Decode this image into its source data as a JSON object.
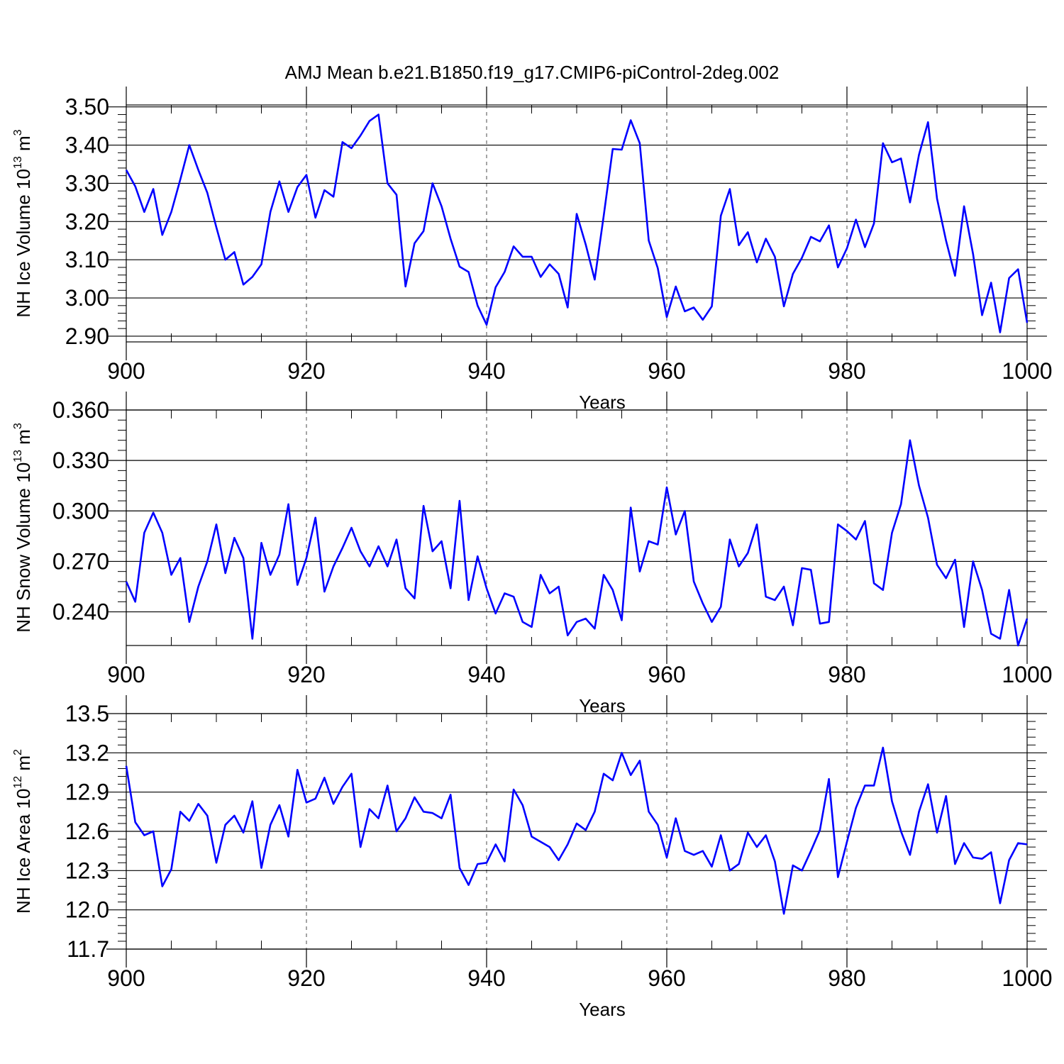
{
  "title": "AMJ Mean b.e21.B1850.f19_g17.CMIP6-piControl-2deg.002",
  "colors": {
    "series": "#0000ff",
    "axis": "#000000"
  },
  "chart_data": [
    {
      "type": "line",
      "xlabel": "Years",
      "ylabel_main": "NH Ice Volume 10",
      "ylabel_exp": "13",
      "ylabel_unit": " m",
      "ylabel_unit_exp": "3",
      "xlim": [
        900,
        1000
      ],
      "ylim": [
        2.885,
        3.505
      ],
      "xticks": [
        900,
        920,
        940,
        960,
        980,
        1000
      ],
      "yticks": [
        2.9,
        3.0,
        3.1,
        3.2,
        3.3,
        3.4,
        3.5
      ],
      "ytick_labels": [
        "2.90",
        "3.00",
        "3.10",
        "3.20",
        "3.30",
        "3.40",
        "3.50"
      ],
      "grid": "vertical-dashed",
      "x_start": 900,
      "values": [
        3.335,
        3.292,
        3.225,
        3.285,
        3.165,
        3.225,
        3.31,
        3.4,
        3.335,
        3.275,
        3.185,
        3.1,
        3.12,
        3.035,
        3.055,
        3.088,
        3.225,
        3.305,
        3.225,
        3.29,
        3.322,
        3.21,
        3.282,
        3.265,
        3.408,
        3.392,
        3.425,
        3.463,
        3.48,
        3.3,
        3.27,
        3.03,
        3.143,
        3.175,
        3.3,
        3.24,
        3.155,
        3.082,
        3.068,
        2.98,
        2.93,
        3.028,
        3.068,
        3.135,
        3.108,
        3.108,
        3.055,
        3.088,
        3.063,
        2.975,
        3.22,
        3.14,
        3.048,
        3.215,
        3.39,
        3.388,
        3.465,
        3.405,
        3.15,
        3.078,
        2.95,
        3.03,
        2.965,
        2.975,
        2.943,
        2.978,
        3.215,
        3.285,
        3.138,
        3.172,
        3.093,
        3.155,
        3.108,
        2.978,
        3.063,
        3.105,
        3.16,
        3.148,
        3.19,
        3.08,
        3.13,
        3.205,
        3.133,
        3.195,
        3.405,
        3.355,
        3.365,
        3.25,
        3.375,
        3.46,
        3.26,
        3.15,
        3.058,
        3.24,
        3.115,
        2.955,
        3.04,
        2.91,
        3.052,
        3.075,
        2.935
      ]
    },
    {
      "type": "line",
      "xlabel": "Years",
      "ylabel_main": "NH Snow Volume 10",
      "ylabel_exp": "13",
      "ylabel_unit": " m",
      "ylabel_unit_exp": "3",
      "xlim": [
        900,
        1000
      ],
      "ylim": [
        0.22,
        0.36
      ],
      "xticks": [
        900,
        920,
        940,
        960,
        980,
        1000
      ],
      "yticks": [
        0.24,
        0.27,
        0.3,
        0.33,
        0.36
      ],
      "ytick_labels": [
        "0.240",
        "0.270",
        "0.300",
        "0.330",
        "0.360"
      ],
      "grid": "vertical-dashed",
      "x_start": 900,
      "values": [
        0.258,
        0.246,
        0.287,
        0.299,
        0.287,
        0.262,
        0.272,
        0.234,
        0.255,
        0.27,
        0.292,
        0.263,
        0.284,
        0.272,
        0.224,
        0.281,
        0.262,
        0.274,
        0.304,
        0.256,
        0.272,
        0.296,
        0.252,
        0.267,
        0.278,
        0.29,
        0.276,
        0.267,
        0.279,
        0.267,
        0.283,
        0.254,
        0.248,
        0.303,
        0.276,
        0.282,
        0.254,
        0.306,
        0.247,
        0.273,
        0.254,
        0.239,
        0.251,
        0.249,
        0.234,
        0.231,
        0.262,
        0.251,
        0.255,
        0.226,
        0.234,
        0.236,
        0.23,
        0.262,
        0.253,
        0.235,
        0.302,
        0.264,
        0.282,
        0.28,
        0.314,
        0.286,
        0.3,
        0.258,
        0.245,
        0.234,
        0.243,
        0.283,
        0.267,
        0.275,
        0.292,
        0.249,
        0.247,
        0.255,
        0.232,
        0.266,
        0.265,
        0.233,
        0.234,
        0.292,
        0.288,
        0.283,
        0.294,
        0.257,
        0.253,
        0.287,
        0.304,
        0.342,
        0.315,
        0.296,
        0.268,
        0.26,
        0.271,
        0.231,
        0.27,
        0.253,
        0.227,
        0.224,
        0.253,
        0.22,
        0.236
      ]
    },
    {
      "type": "line",
      "xlabel": "Years",
      "ylabel_main": "NH Ice Area 10",
      "ylabel_exp": "12",
      "ylabel_unit": " m",
      "ylabel_unit_exp": "2",
      "xlim": [
        900,
        1000
      ],
      "ylim": [
        11.7,
        13.5
      ],
      "xticks": [
        900,
        920,
        940,
        960,
        980,
        1000
      ],
      "yticks": [
        11.7,
        12.0,
        12.3,
        12.6,
        12.9,
        13.2,
        13.5
      ],
      "ytick_labels": [
        "11.7",
        "12.0",
        "12.3",
        "12.6",
        "12.9",
        "13.2",
        "13.5"
      ],
      "grid": "vertical-dashed",
      "x_start": 900,
      "values": [
        13.1,
        12.67,
        12.57,
        12.6,
        12.18,
        12.31,
        12.75,
        12.68,
        12.81,
        12.72,
        12.36,
        12.65,
        12.72,
        12.59,
        12.83,
        12.32,
        12.65,
        12.8,
        12.56,
        13.07,
        12.82,
        12.85,
        13.01,
        12.81,
        12.94,
        13.04,
        12.48,
        12.77,
        12.7,
        12.95,
        12.6,
        12.7,
        12.86,
        12.75,
        12.74,
        12.7,
        12.88,
        12.32,
        12.19,
        12.35,
        12.36,
        12.5,
        12.37,
        12.92,
        12.8,
        12.56,
        12.52,
        12.48,
        12.38,
        12.5,
        12.66,
        12.61,
        12.75,
        13.04,
        12.99,
        13.2,
        13.03,
        13.14,
        12.75,
        12.65,
        12.4,
        12.7,
        12.45,
        12.42,
        12.45,
        12.33,
        12.57,
        12.3,
        12.35,
        12.59,
        12.48,
        12.57,
        12.37,
        11.97,
        12.34,
        12.3,
        12.45,
        12.61,
        13.0,
        12.25,
        12.52,
        12.78,
        12.95,
        12.95,
        13.24,
        12.83,
        12.6,
        12.42,
        12.75,
        12.96,
        12.59,
        12.87,
        12.35,
        12.51,
        12.4,
        12.39,
        12.44,
        12.05,
        12.38,
        12.51,
        12.5
      ]
    }
  ]
}
